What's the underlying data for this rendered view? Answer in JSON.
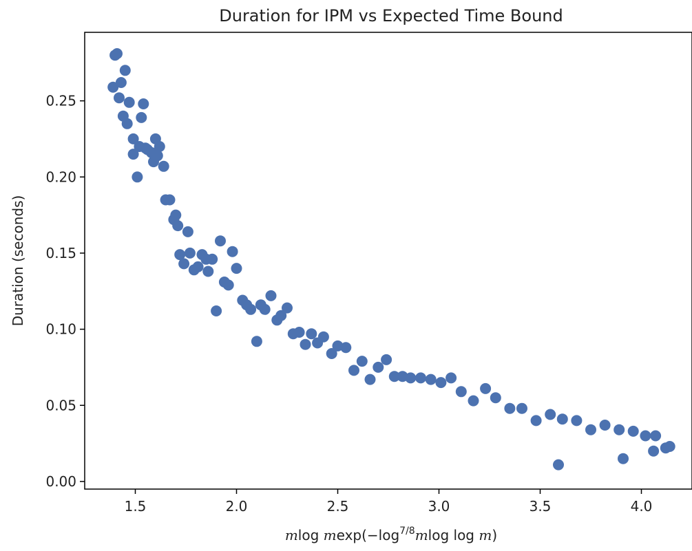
{
  "chart_data": {
    "type": "scatter",
    "title": "Duration for IPM vs Expected Time Bound",
    "xlabel": "m log m exp(−log^{7/8} m log log m)",
    "ylabel": "Duration (seconds)",
    "xlim": [
      1.25,
      4.25
    ],
    "ylim": [
      -0.005,
      0.295
    ],
    "xticks": [
      1.5,
      2.0,
      2.5,
      3.0,
      3.5,
      4.0
    ],
    "xtick_labels": [
      "1.5",
      "2.0",
      "2.5",
      "3.0",
      "3.5",
      "4.0"
    ],
    "yticks": [
      0.0,
      0.05,
      0.1,
      0.15,
      0.2,
      0.25
    ],
    "ytick_labels": [
      "0.00",
      "0.05",
      "0.10",
      "0.15",
      "0.20",
      "0.25"
    ],
    "grid": false,
    "marker_color": "#4c72b0",
    "series": [
      {
        "points": [
          [
            1.39,
            0.259
          ],
          [
            1.4,
            0.28
          ],
          [
            1.41,
            0.281
          ],
          [
            1.42,
            0.252
          ],
          [
            1.43,
            0.262
          ],
          [
            1.44,
            0.24
          ],
          [
            1.45,
            0.27
          ],
          [
            1.46,
            0.235
          ],
          [
            1.47,
            0.249
          ],
          [
            1.49,
            0.225
          ],
          [
            1.49,
            0.215
          ],
          [
            1.51,
            0.2
          ],
          [
            1.52,
            0.22
          ],
          [
            1.53,
            0.239
          ],
          [
            1.54,
            0.248
          ],
          [
            1.55,
            0.219
          ],
          [
            1.56,
            0.218
          ],
          [
            1.58,
            0.216
          ],
          [
            1.59,
            0.21
          ],
          [
            1.6,
            0.225
          ],
          [
            1.61,
            0.214
          ],
          [
            1.62,
            0.22
          ],
          [
            1.64,
            0.207
          ],
          [
            1.65,
            0.185
          ],
          [
            1.67,
            0.185
          ],
          [
            1.69,
            0.172
          ],
          [
            1.7,
            0.175
          ],
          [
            1.71,
            0.168
          ],
          [
            1.72,
            0.149
          ],
          [
            1.74,
            0.143
          ],
          [
            1.76,
            0.164
          ],
          [
            1.77,
            0.15
          ],
          [
            1.79,
            0.139
          ],
          [
            1.81,
            0.141
          ],
          [
            1.83,
            0.149
          ],
          [
            1.85,
            0.146
          ],
          [
            1.86,
            0.138
          ],
          [
            1.88,
            0.146
          ],
          [
            1.9,
            0.112
          ],
          [
            1.92,
            0.158
          ],
          [
            1.94,
            0.131
          ],
          [
            1.96,
            0.129
          ],
          [
            1.98,
            0.151
          ],
          [
            2.0,
            0.14
          ],
          [
            2.03,
            0.119
          ],
          [
            2.05,
            0.116
          ],
          [
            2.07,
            0.113
          ],
          [
            2.1,
            0.092
          ],
          [
            2.12,
            0.116
          ],
          [
            2.14,
            0.113
          ],
          [
            2.17,
            0.122
          ],
          [
            2.2,
            0.106
          ],
          [
            2.22,
            0.109
          ],
          [
            2.25,
            0.114
          ],
          [
            2.28,
            0.097
          ],
          [
            2.31,
            0.098
          ],
          [
            2.34,
            0.09
          ],
          [
            2.37,
            0.097
          ],
          [
            2.4,
            0.091
          ],
          [
            2.43,
            0.095
          ],
          [
            2.47,
            0.084
          ],
          [
            2.5,
            0.089
          ],
          [
            2.54,
            0.088
          ],
          [
            2.58,
            0.073
          ],
          [
            2.62,
            0.079
          ],
          [
            2.66,
            0.067
          ],
          [
            2.7,
            0.075
          ],
          [
            2.74,
            0.08
          ],
          [
            2.78,
            0.069
          ],
          [
            2.82,
            0.069
          ],
          [
            2.86,
            0.068
          ],
          [
            2.91,
            0.068
          ],
          [
            2.96,
            0.067
          ],
          [
            3.01,
            0.065
          ],
          [
            3.06,
            0.068
          ],
          [
            3.11,
            0.059
          ],
          [
            3.17,
            0.053
          ],
          [
            3.23,
            0.061
          ],
          [
            3.28,
            0.055
          ],
          [
            3.35,
            0.048
          ],
          [
            3.41,
            0.048
          ],
          [
            3.48,
            0.04
          ],
          [
            3.55,
            0.044
          ],
          [
            3.59,
            0.011
          ],
          [
            3.61,
            0.041
          ],
          [
            3.68,
            0.04
          ],
          [
            3.75,
            0.034
          ],
          [
            3.82,
            0.037
          ],
          [
            3.89,
            0.034
          ],
          [
            3.91,
            0.015
          ],
          [
            3.96,
            0.033
          ],
          [
            4.02,
            0.03
          ],
          [
            4.06,
            0.02
          ],
          [
            4.07,
            0.03
          ],
          [
            4.12,
            0.022
          ],
          [
            4.14,
            0.023
          ]
        ]
      }
    ]
  }
}
